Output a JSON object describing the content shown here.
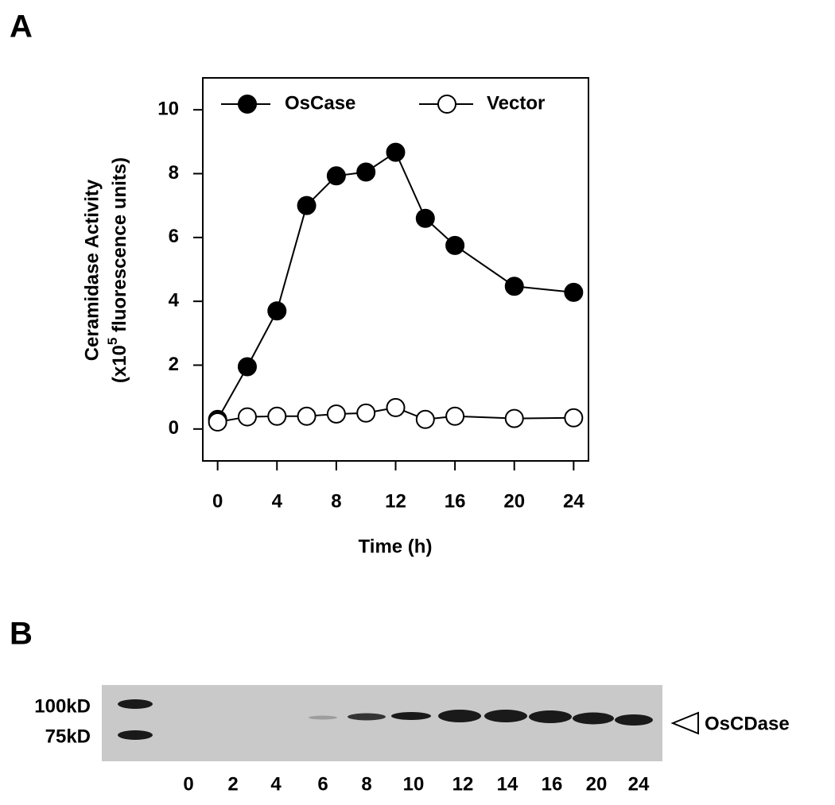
{
  "chart_data": {
    "type": "line",
    "panel_label": "A",
    "xlabel": "Time (h)",
    "ylabel": "Ceramidase Activity",
    "ylabel_unit": [
      "(x10",
      "5",
      " fluorescence units)"
    ],
    "x": [
      0,
      2,
      4,
      6,
      8,
      10,
      12,
      14,
      16,
      20,
      24
    ],
    "series": [
      {
        "name": "OsCase",
        "color": "#000000",
        "marker": "filled",
        "values": [
          0.3,
          1.95,
          3.7,
          7.0,
          7.93,
          8.05,
          8.67,
          6.6,
          5.75,
          4.47,
          4.28
        ]
      },
      {
        "name": "Vector",
        "color": "#000000",
        "marker": "open",
        "values": [
          0.22,
          0.38,
          0.4,
          0.4,
          0.47,
          0.5,
          0.67,
          0.3,
          0.4,
          0.33,
          0.35
        ]
      }
    ],
    "xlim": [
      -1,
      25
    ],
    "ylim": [
      -1,
      11
    ],
    "xticks": [
      0,
      4,
      8,
      12,
      16,
      20,
      24
    ],
    "yticks": [
      0,
      2,
      4,
      6,
      8,
      10
    ],
    "grid": false,
    "legend": "top"
  },
  "blot": {
    "panel_label": "B",
    "markers": [
      "100kD",
      "75kD"
    ],
    "lanes": [
      "0",
      "2",
      "4",
      "6",
      "8",
      "10",
      "12",
      "14",
      "16",
      "20",
      "24"
    ],
    "band_label": "OsCDase"
  }
}
